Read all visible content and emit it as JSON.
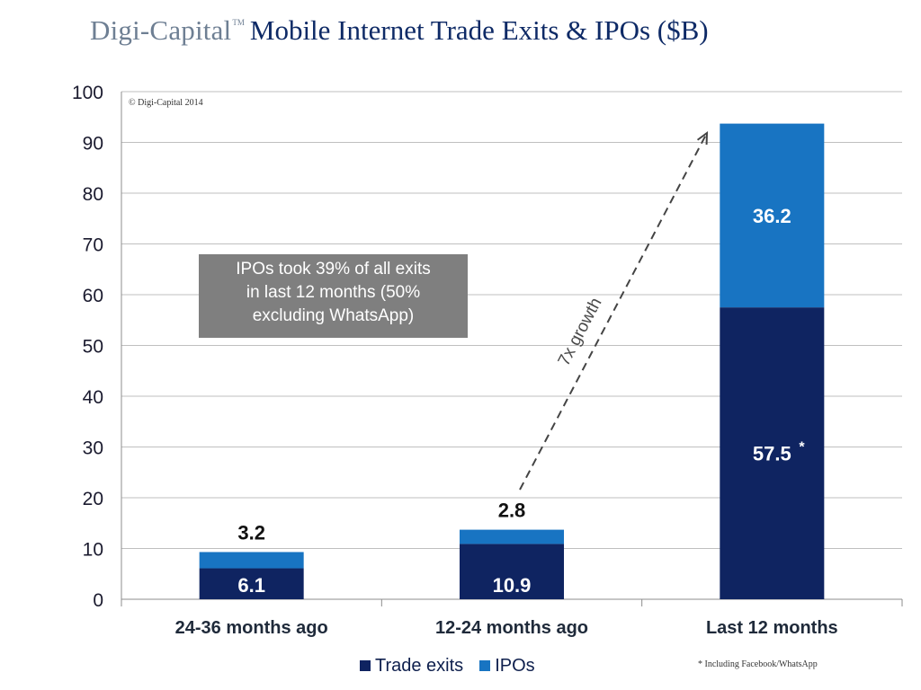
{
  "header": {
    "brand": "Digi-Capital",
    "trademark": "TM",
    "title": "Mobile Internet Trade Exits & IPOs ($B)"
  },
  "colors": {
    "trade_exits": "#0f2461",
    "ipos": "#1874c2",
    "callout_bg": "#7f7f7f",
    "grid": "#bfbfbf"
  },
  "annotations": {
    "copyright": "© Digi-Capital 2014",
    "callout": [
      "IPOs took 39% of all exits",
      "in last 12 months (50%",
      "excluding WhatsApp)"
    ],
    "growth_label": "7x growth",
    "footnote": "* Including Facebook/WhatsApp"
  },
  "chart_data": {
    "type": "bar",
    "stacked": true,
    "title": "Mobile Internet Trade Exits & IPOs ($B)",
    "xlabel": "",
    "ylabel": "",
    "ylim": [
      0,
      100
    ],
    "yticks": [
      0,
      10,
      20,
      30,
      40,
      50,
      60,
      70,
      80,
      90,
      100
    ],
    "grid": true,
    "legend_position": "bottom-center",
    "categories": [
      "24-36 months ago",
      "12-24 months ago",
      "Last 12 months"
    ],
    "series": [
      {
        "name": "Trade exits",
        "values": [
          6.1,
          10.9,
          57.5
        ],
        "labels": [
          "6.1",
          "10.9",
          "57.5"
        ]
      },
      {
        "name": "IPOs",
        "values": [
          3.2,
          2.8,
          36.2
        ],
        "labels": [
          "3.2",
          "2.8",
          "36.2"
        ]
      }
    ],
    "asterisk_on": "57.5"
  }
}
